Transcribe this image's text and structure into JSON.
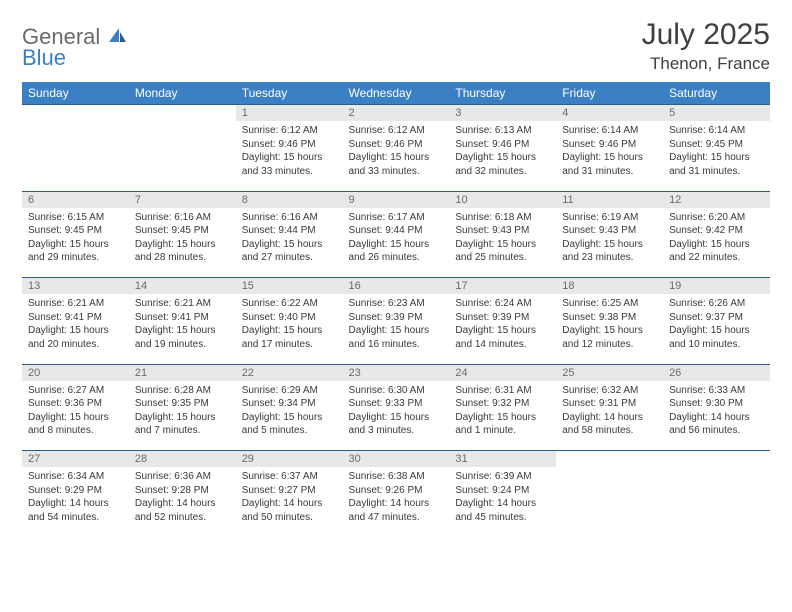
{
  "logo": {
    "word1": "General",
    "word2": "Blue"
  },
  "title": "July 2025",
  "subtitle": "Thenon, France",
  "colors": {
    "header_bg": "#3b7fc4",
    "header_text": "#ffffff",
    "daynum_bg": "#e8e8e8",
    "daynum_text": "#6b6b6b",
    "border": "#2b5e8f",
    "body_text": "#3a3a3a",
    "title_text": "#404040"
  },
  "weekdays": [
    "Sunday",
    "Monday",
    "Tuesday",
    "Wednesday",
    "Thursday",
    "Friday",
    "Saturday"
  ],
  "weeks": [
    [
      null,
      null,
      {
        "n": "1",
        "sr": "Sunrise: 6:12 AM",
        "ss": "Sunset: 9:46 PM",
        "d1": "Daylight: 15 hours",
        "d2": "and 33 minutes."
      },
      {
        "n": "2",
        "sr": "Sunrise: 6:12 AM",
        "ss": "Sunset: 9:46 PM",
        "d1": "Daylight: 15 hours",
        "d2": "and 33 minutes."
      },
      {
        "n": "3",
        "sr": "Sunrise: 6:13 AM",
        "ss": "Sunset: 9:46 PM",
        "d1": "Daylight: 15 hours",
        "d2": "and 32 minutes."
      },
      {
        "n": "4",
        "sr": "Sunrise: 6:14 AM",
        "ss": "Sunset: 9:46 PM",
        "d1": "Daylight: 15 hours",
        "d2": "and 31 minutes."
      },
      {
        "n": "5",
        "sr": "Sunrise: 6:14 AM",
        "ss": "Sunset: 9:45 PM",
        "d1": "Daylight: 15 hours",
        "d2": "and 31 minutes."
      }
    ],
    [
      {
        "n": "6",
        "sr": "Sunrise: 6:15 AM",
        "ss": "Sunset: 9:45 PM",
        "d1": "Daylight: 15 hours",
        "d2": "and 29 minutes."
      },
      {
        "n": "7",
        "sr": "Sunrise: 6:16 AM",
        "ss": "Sunset: 9:45 PM",
        "d1": "Daylight: 15 hours",
        "d2": "and 28 minutes."
      },
      {
        "n": "8",
        "sr": "Sunrise: 6:16 AM",
        "ss": "Sunset: 9:44 PM",
        "d1": "Daylight: 15 hours",
        "d2": "and 27 minutes."
      },
      {
        "n": "9",
        "sr": "Sunrise: 6:17 AM",
        "ss": "Sunset: 9:44 PM",
        "d1": "Daylight: 15 hours",
        "d2": "and 26 minutes."
      },
      {
        "n": "10",
        "sr": "Sunrise: 6:18 AM",
        "ss": "Sunset: 9:43 PM",
        "d1": "Daylight: 15 hours",
        "d2": "and 25 minutes."
      },
      {
        "n": "11",
        "sr": "Sunrise: 6:19 AM",
        "ss": "Sunset: 9:43 PM",
        "d1": "Daylight: 15 hours",
        "d2": "and 23 minutes."
      },
      {
        "n": "12",
        "sr": "Sunrise: 6:20 AM",
        "ss": "Sunset: 9:42 PM",
        "d1": "Daylight: 15 hours",
        "d2": "and 22 minutes."
      }
    ],
    [
      {
        "n": "13",
        "sr": "Sunrise: 6:21 AM",
        "ss": "Sunset: 9:41 PM",
        "d1": "Daylight: 15 hours",
        "d2": "and 20 minutes."
      },
      {
        "n": "14",
        "sr": "Sunrise: 6:21 AM",
        "ss": "Sunset: 9:41 PM",
        "d1": "Daylight: 15 hours",
        "d2": "and 19 minutes."
      },
      {
        "n": "15",
        "sr": "Sunrise: 6:22 AM",
        "ss": "Sunset: 9:40 PM",
        "d1": "Daylight: 15 hours",
        "d2": "and 17 minutes."
      },
      {
        "n": "16",
        "sr": "Sunrise: 6:23 AM",
        "ss": "Sunset: 9:39 PM",
        "d1": "Daylight: 15 hours",
        "d2": "and 16 minutes."
      },
      {
        "n": "17",
        "sr": "Sunrise: 6:24 AM",
        "ss": "Sunset: 9:39 PM",
        "d1": "Daylight: 15 hours",
        "d2": "and 14 minutes."
      },
      {
        "n": "18",
        "sr": "Sunrise: 6:25 AM",
        "ss": "Sunset: 9:38 PM",
        "d1": "Daylight: 15 hours",
        "d2": "and 12 minutes."
      },
      {
        "n": "19",
        "sr": "Sunrise: 6:26 AM",
        "ss": "Sunset: 9:37 PM",
        "d1": "Daylight: 15 hours",
        "d2": "and 10 minutes."
      }
    ],
    [
      {
        "n": "20",
        "sr": "Sunrise: 6:27 AM",
        "ss": "Sunset: 9:36 PM",
        "d1": "Daylight: 15 hours",
        "d2": "and 8 minutes."
      },
      {
        "n": "21",
        "sr": "Sunrise: 6:28 AM",
        "ss": "Sunset: 9:35 PM",
        "d1": "Daylight: 15 hours",
        "d2": "and 7 minutes."
      },
      {
        "n": "22",
        "sr": "Sunrise: 6:29 AM",
        "ss": "Sunset: 9:34 PM",
        "d1": "Daylight: 15 hours",
        "d2": "and 5 minutes."
      },
      {
        "n": "23",
        "sr": "Sunrise: 6:30 AM",
        "ss": "Sunset: 9:33 PM",
        "d1": "Daylight: 15 hours",
        "d2": "and 3 minutes."
      },
      {
        "n": "24",
        "sr": "Sunrise: 6:31 AM",
        "ss": "Sunset: 9:32 PM",
        "d1": "Daylight: 15 hours",
        "d2": "and 1 minute."
      },
      {
        "n": "25",
        "sr": "Sunrise: 6:32 AM",
        "ss": "Sunset: 9:31 PM",
        "d1": "Daylight: 14 hours",
        "d2": "and 58 minutes."
      },
      {
        "n": "26",
        "sr": "Sunrise: 6:33 AM",
        "ss": "Sunset: 9:30 PM",
        "d1": "Daylight: 14 hours",
        "d2": "and 56 minutes."
      }
    ],
    [
      {
        "n": "27",
        "sr": "Sunrise: 6:34 AM",
        "ss": "Sunset: 9:29 PM",
        "d1": "Daylight: 14 hours",
        "d2": "and 54 minutes."
      },
      {
        "n": "28",
        "sr": "Sunrise: 6:36 AM",
        "ss": "Sunset: 9:28 PM",
        "d1": "Daylight: 14 hours",
        "d2": "and 52 minutes."
      },
      {
        "n": "29",
        "sr": "Sunrise: 6:37 AM",
        "ss": "Sunset: 9:27 PM",
        "d1": "Daylight: 14 hours",
        "d2": "and 50 minutes."
      },
      {
        "n": "30",
        "sr": "Sunrise: 6:38 AM",
        "ss": "Sunset: 9:26 PM",
        "d1": "Daylight: 14 hours",
        "d2": "and 47 minutes."
      },
      {
        "n": "31",
        "sr": "Sunrise: 6:39 AM",
        "ss": "Sunset: 9:24 PM",
        "d1": "Daylight: 14 hours",
        "d2": "and 45 minutes."
      },
      null,
      null
    ]
  ]
}
